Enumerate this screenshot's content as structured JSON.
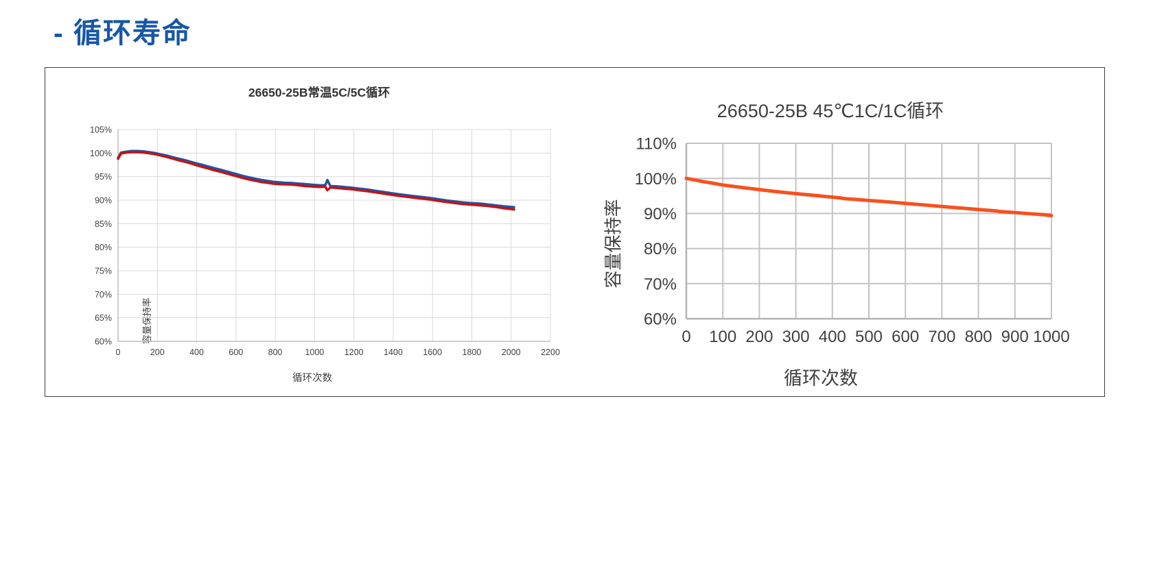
{
  "page": {
    "heading": "- 循环寿命"
  },
  "chart_data": [
    {
      "type": "line",
      "title": "26650-25B常温5C/5C循环",
      "xlabel": "循环次数",
      "ylabel": "容量保持率",
      "xlim": [
        0,
        2200
      ],
      "ylim": [
        60,
        105
      ],
      "xtick_step": 200,
      "ytick_step": 5,
      "ytick_format": "percent",
      "grid": true,
      "legend": "none",
      "series": [
        {
          "name": "blue",
          "color": "#2353A4",
          "points": [
            [
              0,
              99.0
            ],
            [
              15,
              100.1
            ],
            [
              40,
              100.3
            ],
            [
              70,
              100.45
            ],
            [
              100,
              100.45
            ],
            [
              130,
              100.35
            ],
            [
              160,
              100.2
            ],
            [
              190,
              100.0
            ],
            [
              220,
              99.7
            ],
            [
              250,
              99.45
            ],
            [
              280,
              99.1
            ],
            [
              310,
              98.8
            ],
            [
              340,
              98.5
            ],
            [
              370,
              98.15
            ],
            [
              400,
              97.8
            ],
            [
              430,
              97.5
            ],
            [
              460,
              97.15
            ],
            [
              490,
              96.8
            ],
            [
              520,
              96.5
            ],
            [
              550,
              96.15
            ],
            [
              580,
              95.8
            ],
            [
              610,
              95.45
            ],
            [
              640,
              95.1
            ],
            [
              670,
              94.8
            ],
            [
              700,
              94.55
            ],
            [
              730,
              94.3
            ],
            [
              760,
              94.1
            ],
            [
              790,
              93.9
            ],
            [
              820,
              93.8
            ],
            [
              850,
              93.7
            ],
            [
              880,
              93.65
            ],
            [
              910,
              93.55
            ],
            [
              940,
              93.45
            ],
            [
              970,
              93.35
            ],
            [
              1000,
              93.25
            ],
            [
              1030,
              93.15
            ],
            [
              1055,
              93.2
            ],
            [
              1065,
              94.3
            ],
            [
              1080,
              93.0
            ],
            [
              1110,
              92.95
            ],
            [
              1150,
              92.8
            ],
            [
              1190,
              92.65
            ],
            [
              1230,
              92.45
            ],
            [
              1270,
              92.25
            ],
            [
              1310,
              92.0
            ],
            [
              1350,
              91.75
            ],
            [
              1390,
              91.5
            ],
            [
              1430,
              91.25
            ],
            [
              1470,
              91.05
            ],
            [
              1510,
              90.85
            ],
            [
              1550,
              90.65
            ],
            [
              1590,
              90.45
            ],
            [
              1630,
              90.2
            ],
            [
              1670,
              89.95
            ],
            [
              1710,
              89.75
            ],
            [
              1750,
              89.55
            ],
            [
              1790,
              89.4
            ],
            [
              1830,
              89.3
            ],
            [
              1870,
              89.15
            ],
            [
              1900,
              89.0
            ],
            [
              1930,
              88.85
            ],
            [
              1960,
              88.7
            ],
            [
              1990,
              88.6
            ],
            [
              2015,
              88.5
            ]
          ]
        },
        {
          "name": "red",
          "color": "#C21414",
          "points": [
            [
              0,
              98.8
            ],
            [
              15,
              99.9
            ],
            [
              40,
              100.1
            ],
            [
              70,
              100.2
            ],
            [
              100,
              100.2
            ],
            [
              130,
              100.1
            ],
            [
              160,
              99.95
            ],
            [
              190,
              99.75
            ],
            [
              220,
              99.45
            ],
            [
              250,
              99.15
            ],
            [
              280,
              98.8
            ],
            [
              310,
              98.45
            ],
            [
              340,
              98.15
            ],
            [
              370,
              97.8
            ],
            [
              400,
              97.4
            ],
            [
              430,
              97.05
            ],
            [
              460,
              96.7
            ],
            [
              490,
              96.35
            ],
            [
              520,
              96.05
            ],
            [
              550,
              95.7
            ],
            [
              580,
              95.35
            ],
            [
              610,
              95.0
            ],
            [
              640,
              94.65
            ],
            [
              670,
              94.35
            ],
            [
              700,
              94.1
            ],
            [
              730,
              93.85
            ],
            [
              760,
              93.7
            ],
            [
              790,
              93.5
            ],
            [
              820,
              93.4
            ],
            [
              850,
              93.35
            ],
            [
              880,
              93.3
            ],
            [
              910,
              93.2
            ],
            [
              940,
              93.05
            ],
            [
              970,
              92.95
            ],
            [
              1000,
              92.85
            ],
            [
              1030,
              92.8
            ],
            [
              1055,
              92.85
            ],
            [
              1065,
              92.1
            ],
            [
              1080,
              92.7
            ],
            [
              1110,
              92.6
            ],
            [
              1150,
              92.45
            ],
            [
              1190,
              92.3
            ],
            [
              1230,
              92.1
            ],
            [
              1270,
              91.9
            ],
            [
              1310,
              91.65
            ],
            [
              1350,
              91.4
            ],
            [
              1390,
              91.15
            ],
            [
              1430,
              90.9
            ],
            [
              1470,
              90.7
            ],
            [
              1510,
              90.5
            ],
            [
              1550,
              90.3
            ],
            [
              1590,
              90.1
            ],
            [
              1630,
              89.85
            ],
            [
              1670,
              89.6
            ],
            [
              1710,
              89.4
            ],
            [
              1750,
              89.2
            ],
            [
              1790,
              89.05
            ],
            [
              1830,
              88.95
            ],
            [
              1870,
              88.8
            ],
            [
              1900,
              88.65
            ],
            [
              1930,
              88.5
            ],
            [
              1960,
              88.3
            ],
            [
              1990,
              88.15
            ],
            [
              2015,
              88.0
            ]
          ]
        }
      ]
    },
    {
      "type": "line",
      "title": "26650-25B 45℃1C/1C循环",
      "xlabel": "循环次数",
      "ylabel": "容量保持率",
      "xlim": [
        0,
        1000
      ],
      "ylim": [
        60,
        110
      ],
      "xtick_step": 100,
      "ytick_step": 10,
      "ytick_format": "percent",
      "grid": true,
      "legend": "none",
      "series": [
        {
          "name": "orange",
          "color": "#FA4F1E",
          "points": [
            [
              0,
              100.0
            ],
            [
              20,
              99.6
            ],
            [
              50,
              99.0
            ],
            [
              80,
              98.5
            ],
            [
              100,
              98.1
            ],
            [
              130,
              97.7
            ],
            [
              160,
              97.3
            ],
            [
              200,
              96.8
            ],
            [
              240,
              96.3
            ],
            [
              280,
              95.85
            ],
            [
              320,
              95.45
            ],
            [
              360,
              95.05
            ],
            [
              400,
              94.65
            ],
            [
              420,
              94.45
            ],
            [
              435,
              94.2
            ],
            [
              460,
              94.05
            ],
            [
              500,
              93.7
            ],
            [
              540,
              93.4
            ],
            [
              580,
              93.05
            ],
            [
              620,
              92.7
            ],
            [
              660,
              92.35
            ],
            [
              700,
              92.0
            ],
            [
              740,
              91.65
            ],
            [
              780,
              91.3
            ],
            [
              820,
              90.95
            ],
            [
              850,
              90.7
            ],
            [
              860,
              90.55
            ],
            [
              900,
              90.25
            ],
            [
              940,
              89.95
            ],
            [
              970,
              89.7
            ],
            [
              1000,
              89.4
            ]
          ]
        }
      ]
    }
  ]
}
